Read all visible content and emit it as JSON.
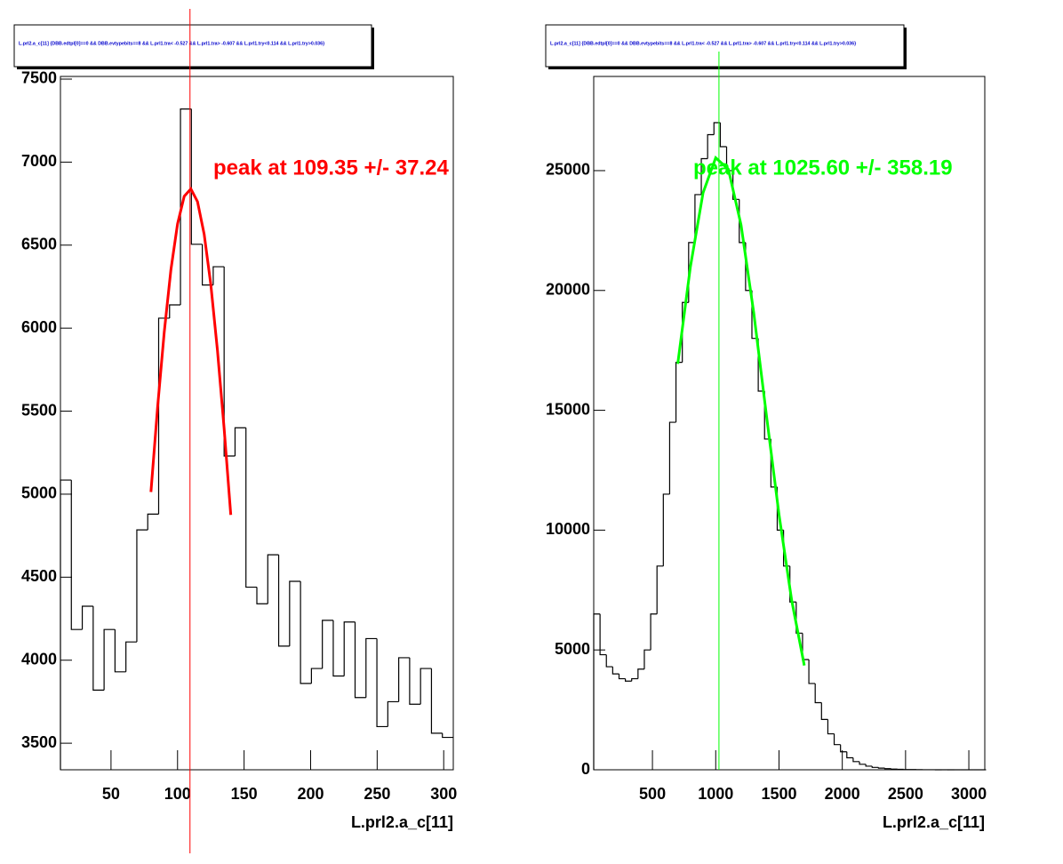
{
  "chart_data": [
    {
      "type": "histogram",
      "title": "L.prl2.a_c[11] {DBB.edtpl[0]==0 && DBB.evtypebits==8 &&  L.prl1.tra< -0.527 && L.prl1.tra> -0.607 && L.prl1.try<0.114 && L.prl1.try>0.036}",
      "x_label": "L.prl2.a_c[11]",
      "annotation": "peak at 109.35 +/- 37.24",
      "color": "#000000",
      "bins": [
        12,
        20.2,
        28.4,
        36.6,
        44.8,
        53,
        61.2,
        69.4,
        77.6,
        85.8,
        94,
        102.2,
        110.4,
        118.6,
        126.8,
        135,
        143.2,
        151.4,
        159.6,
        167.8,
        176,
        184.2,
        192.4,
        200.6,
        208.8,
        217,
        225.2,
        233.4,
        241.6,
        249.8,
        258,
        266.2,
        274.4,
        282.6,
        290.8,
        299,
        307.2
      ],
      "values": [
        5085,
        4185,
        4325,
        3820,
        4185,
        3930,
        4110,
        4785,
        4880,
        6060,
        6140,
        7320,
        6505,
        6260,
        6370,
        5230,
        5400,
        4440,
        4340,
        4635,
        4085,
        4475,
        3860,
        3950,
        4240,
        3905,
        4230,
        3775,
        4130,
        3600,
        3750,
        4015,
        3735,
        3950,
        3560,
        3535
      ],
      "fit": {
        "color": "#ff0000",
        "x": [
          80,
          85,
          90,
          95,
          100,
          105,
          110,
          115,
          120,
          125,
          130,
          135,
          140
        ],
        "values": [
          5013,
          5523,
          5976,
          6351,
          6628,
          6794,
          6839,
          6762,
          6566,
          6262,
          5865,
          5396,
          4875
        ]
      },
      "peak": 109.35,
      "peak_color": "#ff0000",
      "xlim": [
        12,
        307.2
      ],
      "ylim": [
        3340,
        7516
      ],
      "xticks": [
        50,
        100,
        150,
        200,
        250,
        300
      ],
      "yticks": [
        3500,
        4000,
        4500,
        5000,
        5500,
        6000,
        6500,
        7000,
        7500
      ]
    },
    {
      "type": "histogram",
      "title": "L.prl2.a_c[11] {DBB.edtpl[0]==0 && DBB.evtypebits==8 &&  L.prl1.tra< -0.527 && L.prl1.tra> -0.607 && L.prl1.try<0.114 && L.prl1.try>0.036}",
      "x_label": "L.prl2.a_c[11]",
      "annotation": "peak at 1025.60 +/- 358.19",
      "color": "#000000",
      "bins": [
        36,
        86,
        136,
        186,
        236,
        286,
        336,
        386,
        436,
        486,
        536,
        586,
        636,
        686,
        736,
        786,
        836,
        886,
        936,
        986,
        1036,
        1086,
        1136,
        1186,
        1236,
        1286,
        1336,
        1386,
        1436,
        1486,
        1536,
        1586,
        1636,
        1686,
        1736,
        1786,
        1836,
        1886,
        1936,
        1986,
        2036,
        2086,
        2136,
        2186,
        2236,
        2286,
        2336,
        2386,
        2436,
        2486,
        2536,
        2586,
        2636,
        2686,
        2736,
        2786,
        2836,
        2886,
        2936,
        2986,
        3036,
        3086,
        3136
      ],
      "values": [
        6500,
        4800,
        4300,
        4000,
        3800,
        3700,
        3800,
        4200,
        5000,
        6500,
        8500,
        11500,
        14500,
        17000,
        19500,
        22000,
        24000,
        25500,
        26500,
        27000,
        26000,
        25000,
        23800,
        22000,
        20000,
        18000,
        15800,
        13800,
        11800,
        10000,
        8500,
        7000,
        5700,
        4600,
        3600,
        2800,
        2100,
        1500,
        1050,
        750,
        500,
        340,
        230,
        150,
        100,
        70,
        45,
        30,
        20,
        12,
        8,
        5,
        3,
        2,
        1,
        1,
        0,
        0,
        0,
        0,
        0,
        0
      ],
      "fit": {
        "color": "#00ff00",
        "x": [
          700,
          800,
          900,
          1000,
          1100,
          1200,
          1300,
          1400,
          1500,
          1600,
          1700
        ],
        "values": [
          16937,
          20990,
          24074,
          25535,
          25055,
          22737,
          19090,
          14822,
          10650,
          7076,
          4352
        ]
      },
      "peak": 1025.6,
      "peak_color": "#00ff00",
      "xlim": [
        36,
        3126
      ],
      "ylim": [
        0,
        28930
      ],
      "xticks": [
        500,
        1000,
        1500,
        2000,
        2500,
        3000
      ],
      "yticks": [
        0,
        5000,
        10000,
        15000,
        20000,
        25000
      ]
    }
  ]
}
